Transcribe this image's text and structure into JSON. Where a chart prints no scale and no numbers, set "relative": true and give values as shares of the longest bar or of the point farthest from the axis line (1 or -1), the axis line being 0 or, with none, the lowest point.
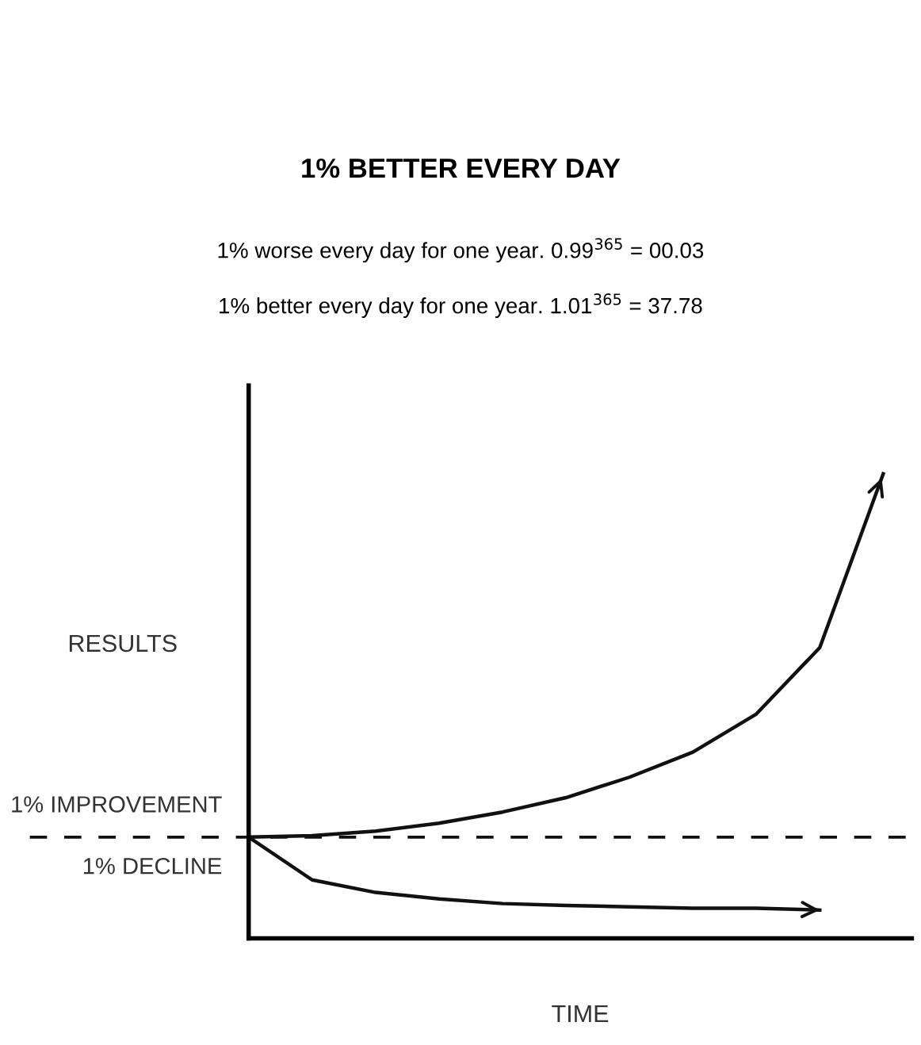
{
  "chart_data": {
    "type": "line",
    "title": "1% BETTER EVERY DAY",
    "subtitle": "1% worse every day for one year. 0.99$^{365}$ = 00.03",
    "annotations": [
      "1% better every day for one year. 1.01$^{365}$ = 37.78"
    ],
    "xlabel": "TIME",
    "ylabel": "RESULTS",
    "relative": true,
    "legend": false,
    "marker": "none",
    "categories": [
      null,
      null,
      null,
      null,
      null,
      null,
      null,
      null,
      null,
      null,
      null
    ],
    "series": [
      {
        "name": "1% IMPROVEMENT",
        "color": "#111111",
        "values": [
          0.218,
          0.221,
          0.231,
          0.248,
          0.272,
          0.303,
          0.347,
          0.401,
          0.483,
          0.626,
          1.0
        ]
      },
      {
        "name": "1% DECLINE",
        "color": "#111111",
        "values": [
          0.218,
          0.126,
          0.099,
          0.085,
          0.075,
          0.071,
          0.068,
          0.065,
          0.065,
          0.061,
          null
        ]
      }
    ],
    "ref_lines": [
      {
        "axis": "y",
        "value": 0.218,
        "label": null,
        "color": "#111111",
        "line_style": "dashed"
      }
    ]
  }
}
